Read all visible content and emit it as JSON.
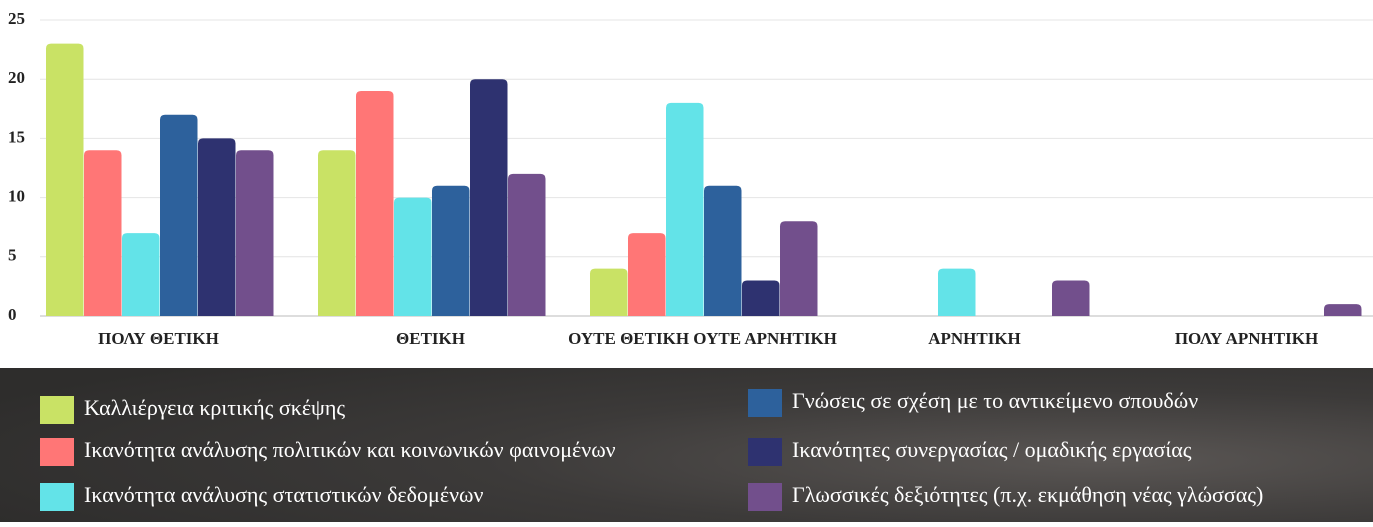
{
  "chart_data": {
    "type": "bar",
    "categories": [
      "ΠΟΛΥ ΘΕΤΙΚΗ",
      "ΘΕΤΙΚΗ",
      "ΟΥΤΕ ΘΕΤΙΚΗ ΟΥΤΕ ΑΡΝΗΤΙΚΗ",
      "ΑΡΝΗΤΙΚΗ",
      "ΠΟΛΥ ΑΡΝΗΤΙΚΗ"
    ],
    "series": [
      {
        "name": "Καλλιέργεια κριτικής σκέψης",
        "color": "#c9e265",
        "values": [
          23,
          14,
          4,
          0,
          0
        ]
      },
      {
        "name": "Ικανότητα ανάλυσης πολιτικών και κοινωνικών φαινομένων",
        "color": "#ff7676",
        "values": [
          14,
          19,
          7,
          0,
          0
        ]
      },
      {
        "name": "Ικανότητα ανάλυσης στατιστικών δεδομένων",
        "color": "#63e3e8",
        "values": [
          7,
          10,
          18,
          4,
          0
        ]
      },
      {
        "name": "Γνώσεις σε σχέση με το αντικείμενο σπουδών",
        "color": "#2d619c",
        "values": [
          17,
          11,
          11,
          0,
          0
        ]
      },
      {
        "name": "Ικανότητες συνεργασίας / ομαδικής εργασίας",
        "color": "#2e3270",
        "values": [
          15,
          20,
          3,
          0,
          0
        ]
      },
      {
        "name": "Γλωσσικές δεξιότητες (π.χ. εκμάθηση νέας γλώσσας)",
        "color": "#724f8c",
        "values": [
          14,
          12,
          8,
          3,
          1
        ]
      }
    ],
    "ylim": [
      0,
      25
    ],
    "yticks": [
      0,
      5,
      10,
      15,
      20,
      25
    ],
    "grid": true,
    "legend": "bottom"
  }
}
